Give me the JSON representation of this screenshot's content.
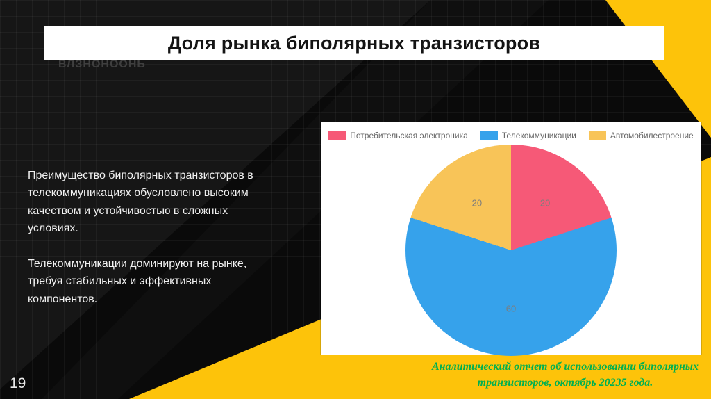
{
  "slide": {
    "title": "Доля рынка биполярных транзисторов",
    "watermark": "ВЛЗНОНООНЬ",
    "page_number": "19",
    "body_paragraphs": [
      "Преимущество биполярных транзисторов в телекоммуникациях обусловлено высоким качеством и устойчивостью в сложных условиях.",
      "Телекоммуникации доминируют на рынке, требуя стабильных и эффективных компонентов."
    ],
    "footer_lines": [
      "Аналитический отчет об использовании биполярных",
      "транзисторов, октябрь 20235 года."
    ],
    "footer_color": "#00b050",
    "accent_yellow": "#fdc30a"
  },
  "chart_data": {
    "type": "pie",
    "title": "",
    "categories": [
      "Потребительская электроника",
      "Телекоммуникации",
      "Автомобилестроение"
    ],
    "values": [
      20,
      60,
      20
    ],
    "colors": [
      "#f65977",
      "#36a2eb",
      "#f8c458"
    ],
    "data_labels": [
      "20",
      "60",
      "20"
    ],
    "legend_position": "top",
    "start_angle_deg": 0,
    "direction": "clockwise"
  }
}
